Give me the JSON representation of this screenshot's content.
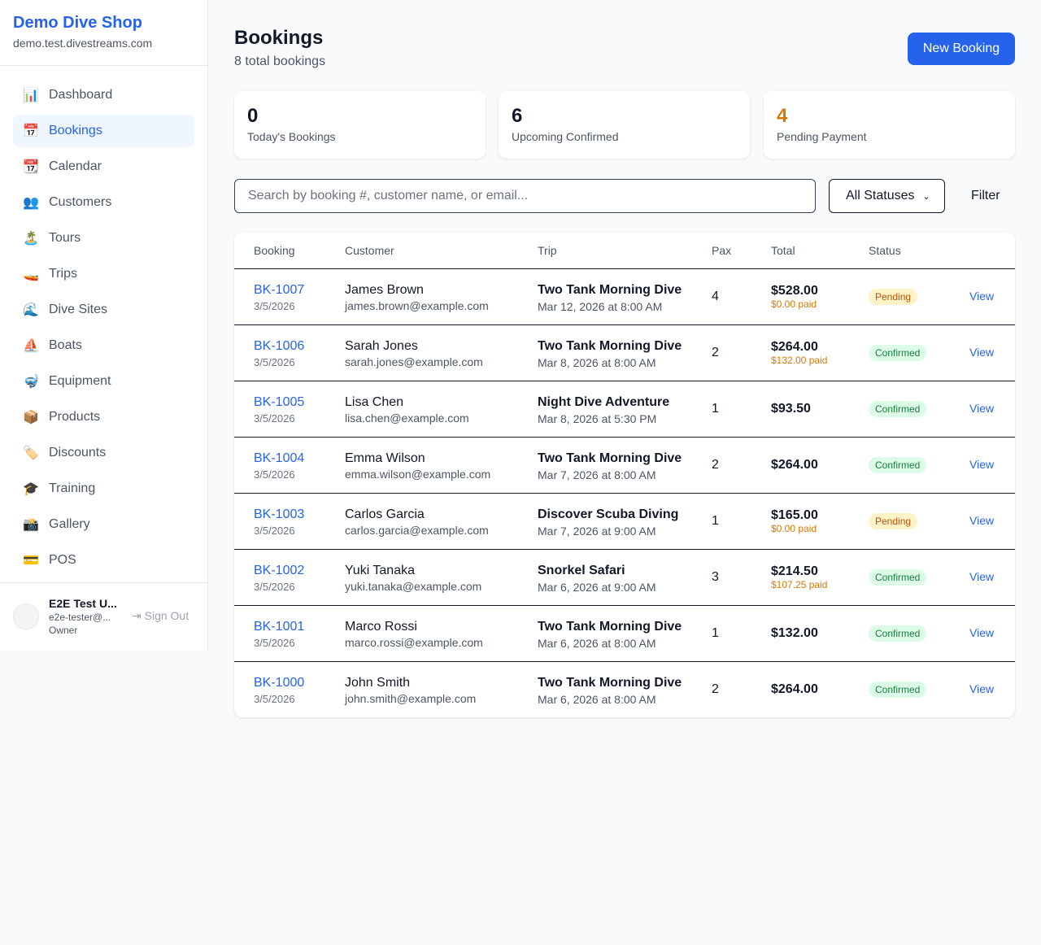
{
  "sidebar": {
    "shop_name": "Demo Dive Shop",
    "domain": "demo.test.divestreams.com",
    "nav": [
      {
        "icon": "📊",
        "label": "Dashboard"
      },
      {
        "icon": "📅",
        "label": "Bookings",
        "active": true
      },
      {
        "icon": "📆",
        "label": "Calendar"
      },
      {
        "icon": "👥",
        "label": "Customers"
      },
      {
        "icon": "🏝️",
        "label": "Tours"
      },
      {
        "icon": "🚤",
        "label": "Trips"
      },
      {
        "icon": "🌊",
        "label": "Dive Sites"
      },
      {
        "icon": "⛵",
        "label": "Boats"
      },
      {
        "icon": "🤿",
        "label": "Equipment"
      },
      {
        "icon": "📦",
        "label": "Products"
      },
      {
        "icon": "🏷️",
        "label": "Discounts"
      },
      {
        "icon": "🎓",
        "label": "Training"
      },
      {
        "icon": "📸",
        "label": "Gallery"
      },
      {
        "icon": "💳",
        "label": "POS"
      }
    ],
    "user": {
      "name": "E2E Test U...",
      "email": "e2e-tester@...",
      "role": "Owner",
      "sign_out": "Sign Out"
    }
  },
  "header": {
    "title": "Bookings",
    "subtitle": "8 total bookings",
    "new_button": "New Booking"
  },
  "stats": [
    {
      "value": 0,
      "label": "Today's Bookings"
    },
    {
      "value": 6,
      "label": "Upcoming Confirmed"
    },
    {
      "value": 4,
      "label": "Pending Payment",
      "color": "#d97706"
    }
  ],
  "search": {
    "placeholder": "Search by booking #, customer name, or email...",
    "status_select": "All Statuses",
    "filter_button": "Filter"
  },
  "table": {
    "columns": [
      "Booking",
      "Customer",
      "Trip",
      "Pax",
      "Total",
      "Status"
    ],
    "rows": [
      {
        "booking": "BK-1007",
        "date": "3/5/2026",
        "customer": "James Brown",
        "email": "james.brown@example.com",
        "trip": "Two Tank Morning Dive",
        "trip_time": "Mar 12, 2026 at 8:00 AM",
        "pax": 4,
        "total": "$528.00",
        "paid": "$0.00 paid",
        "status": "Pending",
        "action": "View"
      },
      {
        "booking": "BK-1006",
        "date": "3/5/2026",
        "customer": "Sarah Jones",
        "email": "sarah.jones@example.com",
        "trip": "Two Tank Morning Dive",
        "trip_time": "Mar 8, 2026 at 8:00 AM",
        "pax": 2,
        "total": "$264.00",
        "paid": "$132.00 paid",
        "status": "Confirmed",
        "action": "View"
      },
      {
        "booking": "BK-1005",
        "date": "3/5/2026",
        "customer": "Lisa Chen",
        "email": "lisa.chen@example.com",
        "trip": "Night Dive Adventure",
        "trip_time": "Mar 8, 2026 at 5:30 PM",
        "pax": 1,
        "total": "$93.50",
        "status": "Confirmed",
        "action": "View"
      },
      {
        "booking": "BK-1004",
        "date": "3/5/2026",
        "customer": "Emma Wilson",
        "email": "emma.wilson@example.com",
        "trip": "Two Tank Morning Dive",
        "trip_time": "Mar 7, 2026 at 8:00 AM",
        "pax": 2,
        "total": "$264.00",
        "status": "Confirmed",
        "action": "View"
      },
      {
        "booking": "BK-1003",
        "date": "3/5/2026",
        "customer": "Carlos Garcia",
        "email": "carlos.garcia@example.com",
        "trip": "Discover Scuba Diving",
        "trip_time": "Mar 7, 2026 at 9:00 AM",
        "pax": 1,
        "total": "$165.00",
        "paid": "$0.00 paid",
        "status": "Pending",
        "action": "View"
      },
      {
        "booking": "BK-1002",
        "date": "3/5/2026",
        "customer": "Yuki Tanaka",
        "email": "yuki.tanaka@example.com",
        "trip": "Snorkel Safari",
        "trip_time": "Mar 6, 2026 at 9:00 AM",
        "pax": 3,
        "total": "$214.50",
        "paid": "$107.25 paid",
        "status": "Confirmed",
        "action": "View"
      },
      {
        "booking": "BK-1001",
        "date": "3/5/2026",
        "customer": "Marco Rossi",
        "email": "marco.rossi@example.com",
        "trip": "Two Tank Morning Dive",
        "trip_time": "Mar 6, 2026 at 8:00 AM",
        "pax": 1,
        "total": "$132.00",
        "status": "Confirmed",
        "action": "View"
      },
      {
        "booking": "BK-1000",
        "date": "3/5/2026",
        "customer": "John Smith",
        "email": "john.smith@example.com",
        "trip": "Two Tank Morning Dive",
        "trip_time": "Mar 6, 2026 at 8:00 AM",
        "pax": 2,
        "total": "$264.00",
        "status": "Confirmed",
        "action": "View"
      }
    ]
  }
}
